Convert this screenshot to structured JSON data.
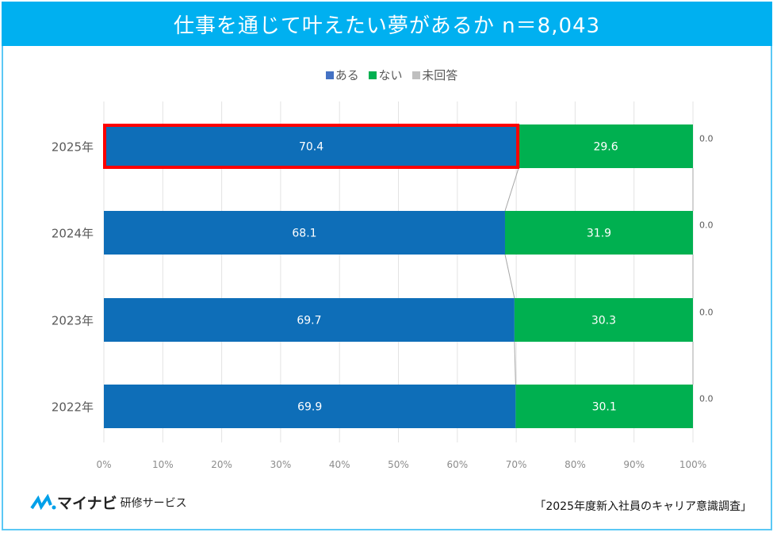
{
  "header": {
    "title": "仕事を通じて叶えたい夢があるか n＝8,043"
  },
  "chart_data": {
    "type": "bar",
    "stacked": true,
    "orientation": "horizontal",
    "title": "仕事を通じて叶えたい夢があるか n＝8,043",
    "categories": [
      "2025年",
      "2024年",
      "2023年",
      "2022年"
    ],
    "series": [
      {
        "name": "ある",
        "color": "#0e6eb8",
        "values": [
          70.4,
          68.1,
          69.7,
          69.9
        ]
      },
      {
        "name": "ない",
        "color": "#00b050",
        "values": [
          29.6,
          31.9,
          30.3,
          30.1
        ]
      },
      {
        "name": "未回答",
        "color": "#bfbfbf",
        "values": [
          0.0,
          0.0,
          0.0,
          0.0
        ]
      }
    ],
    "xlim": [
      0,
      100
    ],
    "xticks": [
      "0%",
      "10%",
      "20%",
      "30%",
      "40%",
      "50%",
      "60%",
      "70%",
      "80%",
      "90%",
      "100%"
    ],
    "grid": true,
    "legend": "top-center",
    "highlight": {
      "category": "2025年",
      "series": "ある",
      "color": "#ff0000"
    }
  },
  "footer": {
    "logo_main": "マイナビ",
    "logo_sub": "研修サービス",
    "source": "「2025年度新入社員のキャリア意識調査」"
  }
}
